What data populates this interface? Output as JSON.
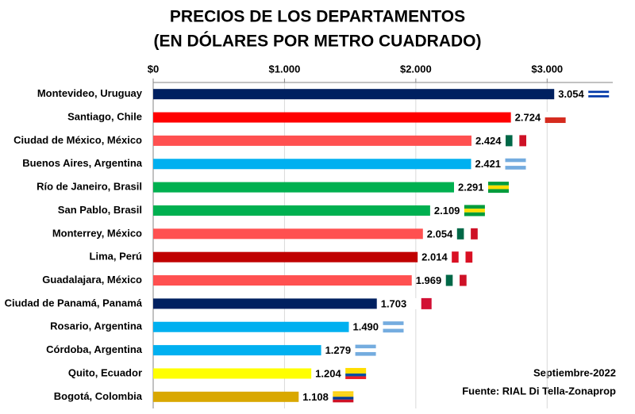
{
  "chart_data": {
    "type": "bar",
    "orientation": "horizontal",
    "title": [
      "PRECIOS DE LOS DEPARTAMENTOS",
      "(EN DÓLARES POR METRO CUADRADO)"
    ],
    "categories": [
      "Montevideo, Uruguay",
      "Santiago, Chile",
      "Ciudad de México, México",
      "Buenos Aires, Argentina",
      "Río de Janeiro, Brasil",
      "San Pablo, Brasil",
      "Monterrey, México",
      "Lima, Perú",
      "Guadalajara, México",
      "Ciudad de Panamá, Panamá",
      "Rosario, Argentina",
      "Córdoba, Argentina",
      "Quito, Ecuador",
      "Bogotá, Colombia"
    ],
    "values": [
      3054,
      2724,
      2424,
      2421,
      2291,
      2109,
      2054,
      2014,
      1969,
      1703,
      1490,
      1279,
      1204,
      1108
    ],
    "value_labels": [
      "3.054",
      "2.724",
      "2.424",
      "2.421",
      "2.291",
      "2.109",
      "2.054",
      "2.014",
      "1.969",
      "1.703",
      "1.490",
      "1.279",
      "1.204",
      "1.108"
    ],
    "colors": [
      "#002060",
      "#ff0000",
      "#ff5050",
      "#00b0f0",
      "#00b050",
      "#00b050",
      "#ff5050",
      "#c00000",
      "#ff5050",
      "#002060",
      "#00b0f0",
      "#00b0f0",
      "#ffff00",
      "#d9a800"
    ],
    "xlim": [
      0,
      3500
    ],
    "xticks": [
      {
        "value": 0,
        "label": "$0"
      },
      {
        "value": 1000,
        "label": "$1.000"
      },
      {
        "value": 2000,
        "label": "$2.000"
      },
      {
        "value": 3000,
        "label": "$3.000"
      }
    ],
    "grid": true,
    "annotations": [
      "Septiembre-2022",
      "Fuente: RIAL Di Tella-Zonaprop"
    ]
  }
}
